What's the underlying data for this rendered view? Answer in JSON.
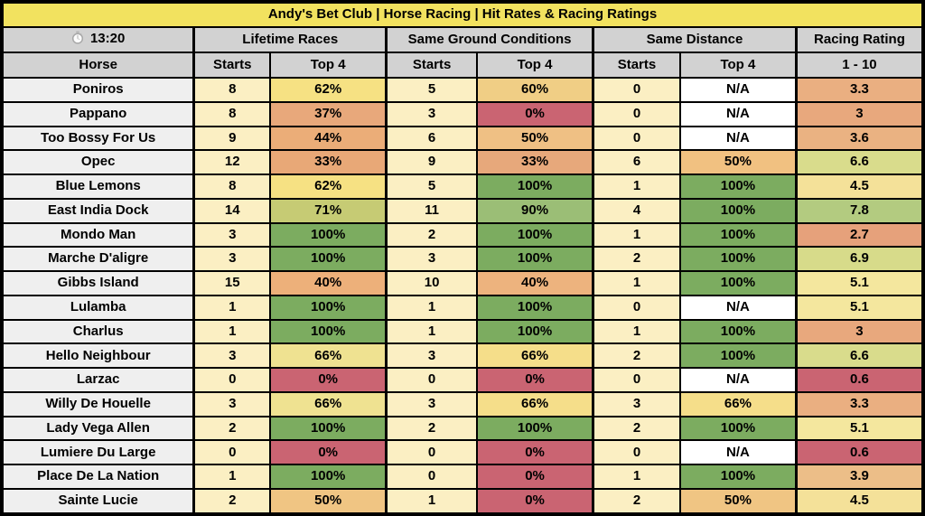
{
  "title": "Andy's Bet Club | Horse Racing | Hit Rates & Racing Ratings",
  "race_time": {
    "icon": "stopwatch",
    "label": "13:20"
  },
  "column_groups": [
    {
      "label": "Lifetime Races"
    },
    {
      "label": "Same Ground Conditions"
    },
    {
      "label": "Same Distance"
    },
    {
      "label": "Racing Rating"
    }
  ],
  "column_headers": [
    "Horse",
    "Starts",
    "Top 4",
    "Starts",
    "Top 4",
    "Starts",
    "Top 4",
    "1 - 10"
  ],
  "colors": {
    "title_bg": "#F2E25F",
    "header_bg": "#D2D2D2",
    "horse_bg": "#EFEFEF",
    "starts_bg": "#FBEFC3",
    "na_bg": "#FFFFFF",
    "green_100": "#7CAC60",
    "red_0": "#CA6472",
    "border": "#000000"
  },
  "rows": [
    {
      "horse": "Poniros",
      "cells": [
        {
          "text": "8",
          "bg": "#FBEFC3"
        },
        {
          "text": "62%",
          "bg": "#F6E183"
        },
        {
          "text": "5",
          "bg": "#FBEFC3"
        },
        {
          "text": "60%",
          "bg": "#F0CE85"
        },
        {
          "text": "0",
          "bg": "#FBEFC3"
        },
        {
          "text": "N/A",
          "bg": "#FFFFFF"
        },
        {
          "text": "3.3",
          "bg": "#EAAF81"
        }
      ]
    },
    {
      "horse": "Pappano",
      "cells": [
        {
          "text": "8",
          "bg": "#FBEFC3"
        },
        {
          "text": "37%",
          "bg": "#E8A87B"
        },
        {
          "text": "3",
          "bg": "#FBEFC3"
        },
        {
          "text": "0%",
          "bg": "#CA6472"
        },
        {
          "text": "0",
          "bg": "#FBEFC3"
        },
        {
          "text": "N/A",
          "bg": "#FFFFFF"
        },
        {
          "text": "3",
          "bg": "#E8A87D"
        }
      ]
    },
    {
      "horse": "Too Bossy For Us",
      "cells": [
        {
          "text": "9",
          "bg": "#FBEFC3"
        },
        {
          "text": "44%",
          "bg": "#EBAD78"
        },
        {
          "text": "6",
          "bg": "#FBEFC3"
        },
        {
          "text": "50%",
          "bg": "#EFC084"
        },
        {
          "text": "0",
          "bg": "#FBEFC3"
        },
        {
          "text": "N/A",
          "bg": "#FFFFFF"
        },
        {
          "text": "3.6",
          "bg": "#EAB282"
        }
      ]
    },
    {
      "horse": "Opec",
      "cells": [
        {
          "text": "12",
          "bg": "#FBEFC3"
        },
        {
          "text": "33%",
          "bg": "#E8A877"
        },
        {
          "text": "9",
          "bg": "#FBEFC3"
        },
        {
          "text": "33%",
          "bg": "#E7A87B"
        },
        {
          "text": "6",
          "bg": "#FBEFC3"
        },
        {
          "text": "50%",
          "bg": "#F1C181"
        },
        {
          "text": "6.6",
          "bg": "#D9DC8C"
        }
      ]
    },
    {
      "horse": "Blue Lemons",
      "cells": [
        {
          "text": "8",
          "bg": "#FBEFC3"
        },
        {
          "text": "62%",
          "bg": "#F6E183"
        },
        {
          "text": "5",
          "bg": "#FBEFC3"
        },
        {
          "text": "100%",
          "bg": "#7CAC60"
        },
        {
          "text": "1",
          "bg": "#FBEFC3"
        },
        {
          "text": "100%",
          "bg": "#7CAC60"
        },
        {
          "text": "4.5",
          "bg": "#F4E199"
        }
      ]
    },
    {
      "horse": "East India Dock",
      "cells": [
        {
          "text": "14",
          "bg": "#FBEFC3"
        },
        {
          "text": "71%",
          "bg": "#C6CB74"
        },
        {
          "text": "11",
          "bg": "#FBEFC3"
        },
        {
          "text": "90%",
          "bg": "#9BBE76"
        },
        {
          "text": "4",
          "bg": "#FBEFC3"
        },
        {
          "text": "100%",
          "bg": "#7CAC60"
        },
        {
          "text": "7.8",
          "bg": "#B3CB80"
        }
      ]
    },
    {
      "horse": "Mondo Man",
      "cells": [
        {
          "text": "3",
          "bg": "#FBEFC3"
        },
        {
          "text": "100%",
          "bg": "#7CAC60"
        },
        {
          "text": "2",
          "bg": "#FBEFC3"
        },
        {
          "text": "100%",
          "bg": "#7CAC60"
        },
        {
          "text": "1",
          "bg": "#FBEFC3"
        },
        {
          "text": "100%",
          "bg": "#7CAC60"
        },
        {
          "text": "2.7",
          "bg": "#E6A17B"
        }
      ]
    },
    {
      "horse": "Marche D'aligre",
      "cells": [
        {
          "text": "3",
          "bg": "#FBEFC3"
        },
        {
          "text": "100%",
          "bg": "#7CAC60"
        },
        {
          "text": "3",
          "bg": "#FBEFC3"
        },
        {
          "text": "100%",
          "bg": "#7CAC60"
        },
        {
          "text": "2",
          "bg": "#FBEFC3"
        },
        {
          "text": "100%",
          "bg": "#7CAC60"
        },
        {
          "text": "6.9",
          "bg": "#D7DB8A"
        }
      ]
    },
    {
      "horse": "Gibbs Island",
      "cells": [
        {
          "text": "15",
          "bg": "#FBEFC3"
        },
        {
          "text": "40%",
          "bg": "#EDB07A"
        },
        {
          "text": "10",
          "bg": "#FBEFC3"
        },
        {
          "text": "40%",
          "bg": "#EDB37E"
        },
        {
          "text": "1",
          "bg": "#FBEFC3"
        },
        {
          "text": "100%",
          "bg": "#7CAC60"
        },
        {
          "text": "5.1",
          "bg": "#F4E79E"
        }
      ]
    },
    {
      "horse": "Lulamba",
      "cells": [
        {
          "text": "1",
          "bg": "#FBEFC3"
        },
        {
          "text": "100%",
          "bg": "#7CAC60"
        },
        {
          "text": "1",
          "bg": "#FBEFC3"
        },
        {
          "text": "100%",
          "bg": "#7CAC60"
        },
        {
          "text": "0",
          "bg": "#FBEFC3"
        },
        {
          "text": "N/A",
          "bg": "#FFFFFF"
        },
        {
          "text": "5.1",
          "bg": "#F4E79E"
        }
      ]
    },
    {
      "horse": "Charlus",
      "cells": [
        {
          "text": "1",
          "bg": "#FBEFC3"
        },
        {
          "text": "100%",
          "bg": "#7CAC60"
        },
        {
          "text": "1",
          "bg": "#FBEFC3"
        },
        {
          "text": "100%",
          "bg": "#7CAC60"
        },
        {
          "text": "1",
          "bg": "#FBEFC3"
        },
        {
          "text": "100%",
          "bg": "#7CAC60"
        },
        {
          "text": "3",
          "bg": "#E8A87D"
        }
      ]
    },
    {
      "horse": "Hello Neighbour",
      "cells": [
        {
          "text": "3",
          "bg": "#FBEFC3"
        },
        {
          "text": "66%",
          "bg": "#EFE291"
        },
        {
          "text": "3",
          "bg": "#FBEFC3"
        },
        {
          "text": "66%",
          "bg": "#F5DE8A"
        },
        {
          "text": "2",
          "bg": "#FBEFC3"
        },
        {
          "text": "100%",
          "bg": "#7CAC60"
        },
        {
          "text": "6.6",
          "bg": "#D9DC8C"
        }
      ]
    },
    {
      "horse": "Larzac",
      "cells": [
        {
          "text": "0",
          "bg": "#FBEFC3"
        },
        {
          "text": "0%",
          "bg": "#CA6472"
        },
        {
          "text": "0",
          "bg": "#FBEFC3"
        },
        {
          "text": "0%",
          "bg": "#CA6472"
        },
        {
          "text": "0",
          "bg": "#FBEFC3"
        },
        {
          "text": "N/A",
          "bg": "#FFFFFF"
        },
        {
          "text": "0.6",
          "bg": "#CA6472"
        }
      ]
    },
    {
      "horse": "Willy De Houelle",
      "cells": [
        {
          "text": "3",
          "bg": "#FBEFC3"
        },
        {
          "text": "66%",
          "bg": "#EFE291"
        },
        {
          "text": "3",
          "bg": "#FBEFC3"
        },
        {
          "text": "66%",
          "bg": "#F5DE8A"
        },
        {
          "text": "3",
          "bg": "#FBEFC3"
        },
        {
          "text": "66%",
          "bg": "#F5DE8A"
        },
        {
          "text": "3.3",
          "bg": "#EAAF81"
        }
      ]
    },
    {
      "horse": "Lady Vega Allen",
      "cells": [
        {
          "text": "2",
          "bg": "#FBEFC3"
        },
        {
          "text": "100%",
          "bg": "#7CAC60"
        },
        {
          "text": "2",
          "bg": "#FBEFC3"
        },
        {
          "text": "100%",
          "bg": "#7CAC60"
        },
        {
          "text": "2",
          "bg": "#FBEFC3"
        },
        {
          "text": "100%",
          "bg": "#7CAC60"
        },
        {
          "text": "5.1",
          "bg": "#F4E79E"
        }
      ]
    },
    {
      "horse": "Lumiere Du Large",
      "cells": [
        {
          "text": "0",
          "bg": "#FBEFC3"
        },
        {
          "text": "0%",
          "bg": "#CA6472"
        },
        {
          "text": "0",
          "bg": "#FBEFC3"
        },
        {
          "text": "0%",
          "bg": "#CA6472"
        },
        {
          "text": "0",
          "bg": "#FBEFC3"
        },
        {
          "text": "N/A",
          "bg": "#FFFFFF"
        },
        {
          "text": "0.6",
          "bg": "#CA6472"
        }
      ]
    },
    {
      "horse": "Place De La Nation",
      "cells": [
        {
          "text": "1",
          "bg": "#FBEFC3"
        },
        {
          "text": "100%",
          "bg": "#7CAC60"
        },
        {
          "text": "0",
          "bg": "#FBEFC3"
        },
        {
          "text": "0%",
          "bg": "#CA6472"
        },
        {
          "text": "1",
          "bg": "#FBEFC3"
        },
        {
          "text": "100%",
          "bg": "#7CAC60"
        },
        {
          "text": "3.9",
          "bg": "#ECBE88"
        }
      ]
    },
    {
      "horse": "Sainte Lucie",
      "cells": [
        {
          "text": "2",
          "bg": "#FBEFC3"
        },
        {
          "text": "50%",
          "bg": "#F0C583"
        },
        {
          "text": "1",
          "bg": "#FBEFC3"
        },
        {
          "text": "0%",
          "bg": "#CA6472"
        },
        {
          "text": "2",
          "bg": "#FBEFC3"
        },
        {
          "text": "50%",
          "bg": "#F0C583"
        },
        {
          "text": "4.5",
          "bg": "#F4E199"
        }
      ]
    }
  ]
}
